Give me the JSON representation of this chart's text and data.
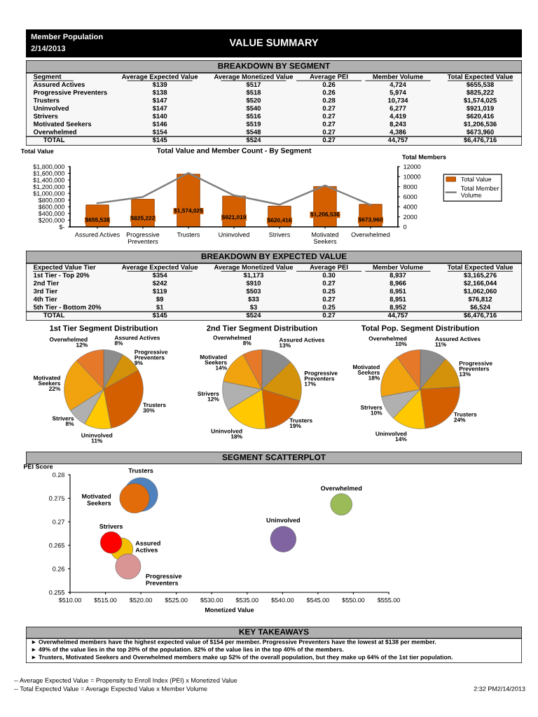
{
  "chart_data": [
    {
      "type": "other",
      "title": "VALUE SUMMARY",
      "annotations": [
        "Member Population",
        "2/14/2013"
      ]
    },
    {
      "type": "other",
      "title": "BREAKDOWN BY SEGMENT",
      "categories": [
        "Segment",
        "Average Expected Value",
        "Average Monetized Value",
        "Average PEI",
        "Member Volume",
        "Total Expected Value"
      ],
      "y_categories": [
        "Assured Actives",
        "Progressive Preventers",
        "Trusters",
        "Uninvolved",
        "Strivers",
        "Motivated Seekers",
        "Overwhelmed",
        "TOTAL"
      ],
      "cell_labels": [
        [
          "$139",
          "$517",
          "0.26",
          "4,724",
          "$655,538"
        ],
        [
          "$138",
          "$518",
          "0.26",
          "5,974",
          "$825,222"
        ],
        [
          "$147",
          "$520",
          "0.28",
          "10,734",
          "$1,574,025"
        ],
        [
          "$147",
          "$540",
          "0.27",
          "6,277",
          "$921,019"
        ],
        [
          "$140",
          "$516",
          "0.27",
          "4,419",
          "$620,416"
        ],
        [
          "$146",
          "$519",
          "0.27",
          "8,243",
          "$1,206,536"
        ],
        [
          "$154",
          "$548",
          "0.27",
          "4,386",
          "$673,960"
        ],
        [
          "$145",
          "$524",
          "0.27",
          "44,757",
          "$6,476,716"
        ]
      ]
    },
    {
      "type": "bar",
      "title": "Total Value and Member Count - By Segment",
      "ylabel": "Total Value",
      "y2label": "Total Members",
      "categories": [
        "Assured Actives",
        "Progressive Preventers",
        "Trusters",
        "Uninvolved",
        "Strivers",
        "Motivated Seekers",
        "Overwhelmed"
      ],
      "series": [
        {
          "name": "Total Value",
          "type": "bar",
          "color": "#d45f00",
          "values": [
            655538,
            825222,
            1574025,
            921019,
            620416,
            1206536,
            673960
          ],
          "value_labels": [
            "$655,538",
            "$825,222",
            "$1,574,025",
            "$921,019",
            "$620,416",
            "$1,206,536",
            "$673,960"
          ]
        },
        {
          "name": "Total Member Volume",
          "type": "line",
          "axis": "y2",
          "color": "#7f7f7f",
          "values": [
            4724,
            5974,
            10734,
            6277,
            4419,
            8243,
            4386
          ]
        }
      ],
      "ylim": [
        0,
        1800000
      ],
      "yticks": [
        {
          "value": 0,
          "label": "$-"
        },
        {
          "value": 200000,
          "label": "$200,000"
        },
        {
          "value": 400000,
          "label": "$400,000"
        },
        {
          "value": 600000,
          "label": "$600,000"
        },
        {
          "value": 800000,
          "label": "$800,000"
        },
        {
          "value": 1000000,
          "label": "$1,000,000"
        },
        {
          "value": 1200000,
          "label": "$1,200,000"
        },
        {
          "value": 1400000,
          "label": "$1,400,000"
        },
        {
          "value": 1600000,
          "label": "$1,600,000"
        },
        {
          "value": 1800000,
          "label": "$1,800,000"
        }
      ],
      "y2lim": [
        0,
        12000
      ],
      "y2ticks": [
        0,
        2000,
        4000,
        6000,
        8000,
        10000,
        12000
      ],
      "legend": "right",
      "grid": false,
      "marker": "none"
    },
    {
      "type": "other",
      "title": "BREAKDOWN BY EXPECTED VALUE",
      "categories": [
        "Expected Value Tier",
        "Average Expected Value",
        "Average Monetized Value",
        "Average PEI",
        "Member Volume",
        "Total Expected Value"
      ],
      "y_categories": [
        "1st Tier - Top 20%",
        "2nd Tier",
        "3rd Tier",
        "4th Tier",
        "5th Tier - Bottom 20%",
        "TOTAL"
      ],
      "cell_labels": [
        [
          "$354",
          "$1,173",
          "0.30",
          "8,937",
          "$3,165,276"
        ],
        [
          "$242",
          "$910",
          "0.27",
          "8,966",
          "$2,166,044"
        ],
        [
          "$119",
          "$503",
          "0.25",
          "8,951",
          "$1,062,060"
        ],
        [
          "$9",
          "$33",
          "0.27",
          "8,951",
          "$76,812"
        ],
        [
          "$1",
          "$3",
          "0.25",
          "8,952",
          "$6,524"
        ],
        [
          "$145",
          "$524",
          "0.27",
          "44,757",
          "$6,476,716"
        ]
      ]
    },
    {
      "type": "pie",
      "title": "1st Tier Segment Distribution",
      "categories": [
        "Assured Actives",
        "Progressive Preventers",
        "Trusters",
        "Uninvolved",
        "Strivers",
        "Motivated Seekers",
        "Overwhelmed"
      ],
      "values": [
        8,
        9,
        30,
        11,
        8,
        22,
        12
      ],
      "value_labels": [
        "8%",
        "9%",
        "30%",
        "11%",
        "8%",
        "22%",
        "12%"
      ],
      "colors": [
        "#8c8c8c",
        "#d4920a",
        "#d45f00",
        "#ffc800",
        "#b0b0b0",
        "#f0a20f",
        "#e6782a"
      ]
    },
    {
      "type": "pie",
      "title": "2nd Tier Segment Distribution",
      "categories": [
        "Assured Actives",
        "Progressive Preventers",
        "Trusters",
        "Uninvolved",
        "Strivers",
        "Motivated Seekers",
        "Overwhelmed"
      ],
      "values": [
        13,
        17,
        19,
        18,
        12,
        14,
        8
      ],
      "value_labels": [
        "13%",
        "17%",
        "19%",
        "18%",
        "12%",
        "14%",
        "8%"
      ],
      "colors": [
        "#8c8c8c",
        "#d4920a",
        "#d45f00",
        "#ffc800",
        "#b0b0b0",
        "#f0a20f",
        "#e6782a"
      ]
    },
    {
      "type": "pie",
      "title": "Total Pop. Segment Distribution",
      "categories": [
        "Assured Actives",
        "Progressive Preventers",
        "Trusters",
        "Uninvolved",
        "Strivers",
        "Motivated Seekers",
        "Overwhelmed"
      ],
      "values": [
        11,
        13,
        24,
        14,
        10,
        18,
        10
      ],
      "value_labels": [
        "11%",
        "13%",
        "24%",
        "14%",
        "10%",
        "18%",
        "10%"
      ],
      "colors": [
        "#8c8c8c",
        "#d4920a",
        "#d45f00",
        "#ffc800",
        "#b0b0b0",
        "#f0a20f",
        "#e6782a"
      ]
    },
    {
      "type": "bubble",
      "title": "SEGMENT SCATTERPLOT",
      "xlabel": "Monetized Value",
      "ylabel": "PEI Score",
      "series": [
        {
          "name": "Trusters",
          "color": "#4f81bd",
          "x": [
            520.0
          ],
          "values": [
            0.2758
          ],
          "sizes": [
            1.0
          ]
        },
        {
          "name": "Motivated Seekers",
          "color": "#e36c0a",
          "x": [
            519.1
          ],
          "values": [
            0.275
          ],
          "sizes": [
            0.77
          ]
        },
        {
          "name": "Assured Actives",
          "color": "#f2c000",
          "x": [
            517.3
          ],
          "values": [
            0.2642
          ],
          "sizes": [
            0.44
          ]
        },
        {
          "name": "Strivers",
          "color": "#ff0000",
          "x": [
            515.8
          ],
          "values": [
            0.2656
          ],
          "sizes": [
            0.41
          ]
        },
        {
          "name": "Progressive Preventers",
          "color": "#d99594",
          "x": [
            518.2
          ],
          "values": [
            0.2605
          ],
          "sizes": [
            0.56
          ]
        },
        {
          "name": "Uninvolved",
          "color": "#8064a2",
          "x": [
            540.1
          ],
          "values": [
            0.2663
          ],
          "sizes": [
            0.58
          ]
        },
        {
          "name": "Overwhelmed",
          "color": "#9bbb59",
          "x": [
            548.3
          ],
          "values": [
            0.2737
          ],
          "sizes": [
            0.41
          ]
        }
      ],
      "xlim": [
        510,
        555
      ],
      "xticks": [
        {
          "value": 510,
          "label": "$510.00"
        },
        {
          "value": 515,
          "label": "$515.00"
        },
        {
          "value": 520,
          "label": "$520.00"
        },
        {
          "value": 525,
          "label": "$525.00"
        },
        {
          "value": 530,
          "label": "$530.00"
        },
        {
          "value": 535,
          "label": "$535.00"
        },
        {
          "value": 540,
          "label": "$540.00"
        },
        {
          "value": 545,
          "label": "$545.00"
        },
        {
          "value": 550,
          "label": "$550.00"
        },
        {
          "value": 555,
          "label": "$555.00"
        }
      ],
      "ylim": [
        0.255,
        0.28
      ],
      "yticks": [
        0.255,
        0.26,
        0.265,
        0.27,
        0.275,
        0.28
      ],
      "grid": false
    },
    {
      "type": "other",
      "title": "KEY TAKEAWAYS",
      "annotations": [
        "► Overwhelmed members have the highest expected value of $154 per member. Progressive Preventers have the lowest at $138 per member.",
        "► 49% of the value lies in the top 20% of the population. 82% of the value lies in the top 40% of the members.",
        "► Trusters, Motivated Seekers and Overwhelmed members make up 52% of the overall population, but they make up 64% of the 1st tier population."
      ]
    },
    {
      "type": "other",
      "annotations": [
        "-- Average Expected Value = Propensity to Enroll Index (PEI) x Monetized Value",
        "-- Total Expected Value = Average Expected Value x Member Volume",
        "2:32 PM2/14/2013"
      ]
    }
  ]
}
